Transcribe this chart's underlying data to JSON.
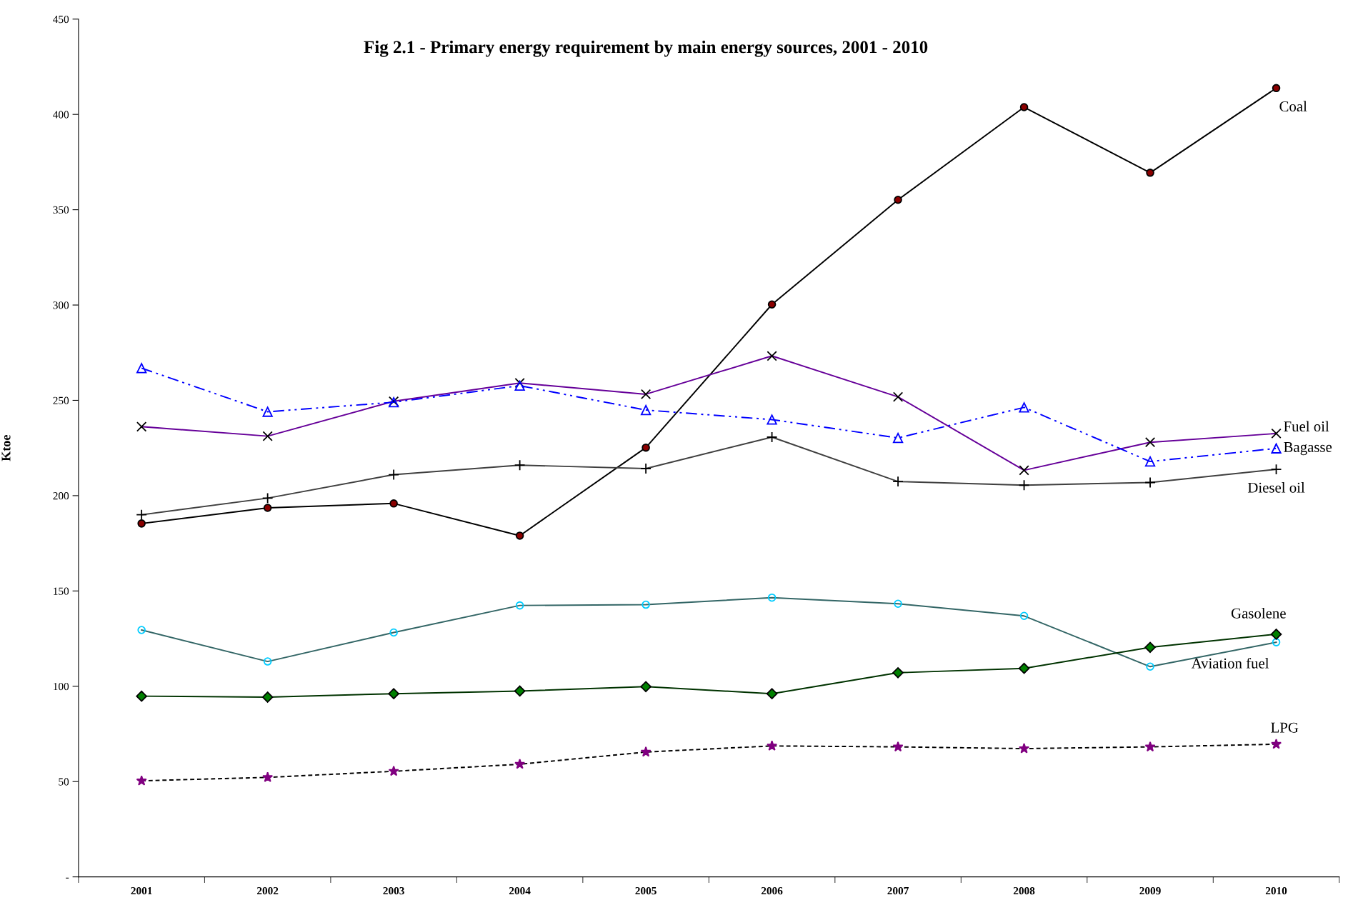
{
  "chart_data": {
    "type": "line",
    "title": "Fig 2.1 - Primary energy requirement by main energy sources, 2001 - 2010",
    "ylabel": "Ktoe",
    "categories": [
      "2001",
      "2002",
      "2003",
      "2004",
      "2005",
      "2006",
      "2007",
      "2008",
      "2009",
      "2010"
    ],
    "ylim": [
      0,
      450
    ],
    "yticks": [
      {
        "value": 0,
        "label": "-"
      },
      50,
      100,
      150,
      200,
      250,
      300,
      350,
      400,
      450
    ],
    "grid": false,
    "legend": false,
    "series": [
      {
        "name": "Coal",
        "color": "#000000",
        "marker": "circle",
        "line_style": "solid",
        "values": [
          185.4,
          193.6,
          195.9,
          179,
          225.2,
          300.3,
          355.2,
          403.8,
          369.4,
          413.8
        ]
      },
      {
        "name": "Fuel oil",
        "color": "#660099",
        "marker": "cross",
        "line_style": "solid",
        "values": [
          236.2,
          231.2,
          249.5,
          259.1,
          253.2,
          273.3,
          251.8,
          213.3,
          228,
          232.6
        ]
      },
      {
        "name": "Bagasse",
        "color": "#0000ff",
        "marker": "triangle",
        "line_style": "dashdot",
        "values": [
          266.9,
          244,
          249,
          257.7,
          244.9,
          239.9,
          230.3,
          246.3,
          217.9,
          224.8
        ]
      },
      {
        "name": "Diesel oil",
        "color": "#404040",
        "marker": "plus",
        "line_style": "solid",
        "values": [
          190,
          198.7,
          211,
          216,
          214.2,
          230.7,
          207.4,
          205.5,
          206.9,
          213.8
        ]
      },
      {
        "name": "Aviation fuel",
        "color": "#336666",
        "marker": "circle",
        "line_style": "solid",
        "values": [
          129.5,
          113,
          128.2,
          142.4,
          142.8,
          146.5,
          143.3,
          136.9,
          110.3,
          123.1
        ]
      },
      {
        "name": "Gasolene",
        "color": "#003300",
        "marker": "diamond",
        "line_style": "solid",
        "values": [
          94.8,
          94.3,
          96.1,
          97.5,
          99.8,
          96.1,
          107.1,
          109.4,
          120.4,
          127.3
        ]
      },
      {
        "name": "LPG",
        "color": "#000000",
        "marker": "star",
        "line_style": "dashed",
        "values": [
          50.4,
          52.2,
          55.4,
          59.1,
          65.5,
          68.7,
          68.2,
          67.3,
          68.2,
          69.6
        ]
      }
    ]
  }
}
